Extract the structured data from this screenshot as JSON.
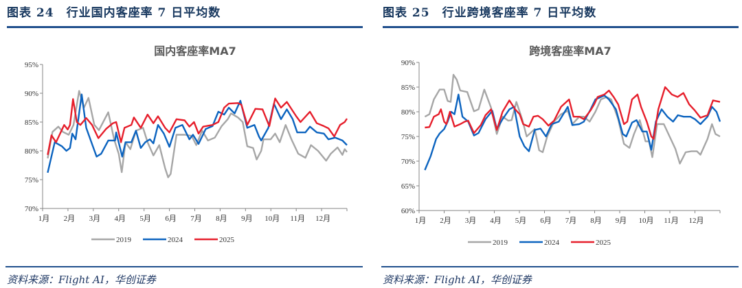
{
  "headers": [
    {
      "title": "图表 24　行业国内客座率 7 日平均数"
    },
    {
      "title": "图表 25　行业跨境客座率 7 日平均数"
    }
  ],
  "source": "资料来源：Flight AI，华创证券",
  "colors": {
    "2019": "#a6a6a6",
    "2024": "#0b63bf",
    "2025": "#e61e2b",
    "header": "#17375e"
  },
  "chart_data": [
    {
      "type": "line",
      "title": "国内客座率MA7",
      "xlabel": "",
      "ylabel": "",
      "ylim": [
        70,
        95
      ],
      "xlim": [
        1,
        13
      ],
      "yticks": [
        70,
        75,
        80,
        85,
        90,
        95
      ],
      "ytick_labels": [
        "70%",
        "75%",
        "80%",
        "85%",
        "90%",
        "95%"
      ],
      "xtick_labels": [
        "1月",
        "2月",
        "3月",
        "4月",
        "5月",
        "6月",
        "7月",
        "8月",
        "9月",
        "10月",
        "11月",
        "12月"
      ],
      "legend": "bottom",
      "series": [
        {
          "name": "2019",
          "x": [
            1.2,
            1.39,
            1.62,
            1.8,
            2.03,
            2.22,
            2.44,
            2.63,
            2.81,
            3.04,
            3.22,
            3.59,
            3.82,
            4.0,
            4.12,
            4.27,
            4.46,
            4.68,
            4.96,
            5.14,
            5.37,
            5.6,
            5.83,
            5.95,
            6.05,
            6.28,
            6.6,
            6.88,
            7.06,
            7.29,
            7.52,
            7.79,
            8.06,
            8.3,
            8.43,
            8.7,
            8.89,
            9.07,
            9.3,
            9.44,
            9.62,
            9.71,
            9.99,
            10.17,
            10.35,
            10.58,
            10.81,
            11.08,
            11.36,
            11.58,
            11.86,
            12.18,
            12.36,
            12.63,
            12.82,
            12.91,
            13.0
          ],
          "y": [
            78.7,
            83.3,
            84.2,
            83.3,
            82.8,
            84.5,
            90.4,
            87.5,
            89.2,
            84.5,
            83.6,
            86.7,
            82,
            79.5,
            76.3,
            81.5,
            80.3,
            83.5,
            84,
            81.5,
            79.2,
            81,
            77,
            75.4,
            76,
            82.8,
            82.8,
            82.6,
            81,
            83.5,
            81.8,
            82.3,
            84.3,
            85.5,
            86.5,
            85.8,
            85,
            80.8,
            80.5,
            78.5,
            80,
            82,
            82,
            83,
            81.5,
            84.5,
            82,
            79.5,
            78.8,
            81,
            80,
            78.3,
            79.5,
            80.6,
            79.3,
            80.3,
            79.8
          ]
        },
        {
          "name": "2024",
          "x": [
            1.2,
            1.48,
            1.76,
            1.94,
            2.08,
            2.17,
            2.3,
            2.54,
            2.72,
            2.9,
            3.13,
            3.31,
            3.59,
            3.86,
            3.9,
            4.14,
            4.27,
            4.5,
            4.68,
            4.87,
            5.05,
            5.23,
            5.37,
            5.55,
            5.78,
            6.0,
            6.24,
            6.51,
            6.79,
            6.93,
            7.15,
            7.43,
            7.7,
            7.93,
            8.16,
            8.34,
            8.57,
            8.8,
            9.07,
            9.35,
            9.53,
            9.62,
            9.9,
            10.12,
            10.4,
            10.63,
            10.86,
            11.04,
            11.36,
            11.54,
            11.81,
            12.09,
            12.27,
            12.54,
            12.82,
            13.0
          ],
          "y": [
            76.2,
            81.5,
            80.8,
            80,
            80.5,
            83,
            82,
            89.8,
            84,
            81.8,
            79,
            79.5,
            81.8,
            81.8,
            83.2,
            79,
            81.5,
            81.5,
            83.5,
            80.5,
            81.5,
            82,
            81.3,
            84.5,
            83,
            80.7,
            84,
            84.5,
            82,
            82.8,
            81.2,
            83.8,
            84.3,
            86.8,
            86.3,
            87.5,
            86.5,
            88.7,
            84,
            84.5,
            82.5,
            81.8,
            84,
            88.2,
            85.5,
            87.2,
            85.5,
            83.2,
            83.2,
            84.2,
            83.2,
            83,
            82,
            82.3,
            81.8,
            81
          ]
        },
        {
          "name": "2025",
          "x": [
            1.2,
            1.35,
            1.53,
            1.85,
            1.99,
            2.08,
            2.2,
            2.35,
            2.49,
            2.72,
            2.95,
            3.2,
            3.5,
            3.77,
            3.9,
            4.09,
            4.23,
            4.5,
            4.6,
            4.87,
            5.14,
            5.37,
            5.55,
            5.83,
            6.0,
            6.28,
            6.6,
            6.79,
            6.97,
            7.15,
            7.33,
            7.7,
            7.93,
            8.16,
            8.34,
            8.7,
            8.84,
            9.07,
            9.39,
            9.67,
            9.94,
            10.17,
            10.4,
            10.63,
            11.0,
            11.17,
            11.54,
            11.81,
            12.09,
            12.27,
            12.5,
            12.73,
            12.91,
            13.0
          ],
          "y": [
            79.3,
            82.7,
            81.5,
            84.5,
            83.7,
            84.5,
            89,
            85,
            84.5,
            85.7,
            84.5,
            82.2,
            83.8,
            84.8,
            85,
            81.5,
            84,
            84.5,
            85.8,
            84,
            86.3,
            84.8,
            86,
            84,
            83.2,
            85.5,
            85.3,
            84.2,
            85,
            83,
            84.2,
            84.5,
            85,
            87.5,
            88.2,
            88.3,
            88,
            84.5,
            87.3,
            87.2,
            84.3,
            89.1,
            87.5,
            88.5,
            86,
            85,
            86.8,
            84.8,
            84.3,
            83.9,
            82.5,
            84.5,
            85,
            85.6
          ]
        }
      ]
    },
    {
      "type": "line",
      "title": "跨境客座率MA7",
      "xlabel": "",
      "ylabel": "",
      "ylim": [
        60,
        90
      ],
      "xlim": [
        1,
        13
      ],
      "yticks": [
        60,
        65,
        70,
        75,
        80,
        85,
        90
      ],
      "ytick_labels": [
        "60%",
        "65%",
        "70%",
        "75%",
        "80%",
        "85%",
        "90%"
      ],
      "xtick_labels": [
        "1月",
        "2月",
        "3月",
        "4月",
        "5月",
        "6月",
        "7月",
        "8月",
        "9月",
        "10月",
        "11月",
        "12月"
      ],
      "legend": "bottom",
      "series": [
        {
          "name": "2019",
          "x": [
            1.23,
            1.41,
            1.59,
            1.82,
            2.0,
            2.14,
            2.26,
            2.37,
            2.5,
            2.64,
            2.92,
            3.19,
            3.37,
            3.6,
            3.87,
            4.1,
            4.33,
            4.56,
            4.69,
            4.88,
            5.11,
            5.29,
            5.61,
            5.79,
            5.93,
            6.11,
            6.38,
            6.66,
            6.93,
            7.11,
            7.39,
            7.57,
            7.8,
            8.03,
            8.25,
            8.48,
            8.66,
            8.94,
            9.17,
            9.39,
            9.57,
            9.8,
            10.03,
            10.17,
            10.3,
            10.49,
            10.76,
            10.99,
            11.22,
            11.4,
            11.63,
            11.86,
            12.08,
            12.22,
            12.5,
            12.68,
            12.82,
            13.0
          ],
          "y": [
            79,
            79.5,
            82.5,
            84.5,
            84.5,
            82.2,
            82,
            87.5,
            86.5,
            84.3,
            84,
            80.1,
            80.5,
            84.5,
            80.8,
            75.5,
            79,
            78.2,
            78.3,
            82,
            78.5,
            75,
            76.5,
            72.2,
            71.8,
            75,
            78,
            79.5,
            80.2,
            77.5,
            79,
            79,
            78,
            80,
            82.5,
            83,
            82.5,
            78.5,
            73.5,
            72.7,
            75.5,
            78.3,
            74,
            74,
            70.8,
            77.5,
            77.5,
            75,
            72.5,
            69.5,
            71.8,
            72,
            72,
            71.3,
            74.5,
            77.5,
            75.5,
            75
          ]
        },
        {
          "name": "2024",
          "x": [
            1.23,
            1.46,
            1.68,
            1.82,
            2.0,
            2.14,
            2.28,
            2.41,
            2.57,
            2.73,
            2.96,
            3.19,
            3.37,
            3.65,
            3.92,
            4.1,
            4.33,
            4.6,
            4.79,
            5.01,
            5.2,
            5.38,
            5.61,
            5.84,
            6.06,
            6.29,
            6.57,
            6.93,
            7.11,
            7.39,
            7.57,
            7.84,
            8.03,
            8.39,
            8.57,
            8.85,
            9.12,
            9.26,
            9.49,
            9.67,
            9.9,
            10.08,
            10.26,
            10.44,
            10.67,
            10.9,
            11.13,
            11.32,
            11.55,
            11.82,
            12.0,
            12.22,
            12.5,
            12.68,
            12.86,
            13.0
          ],
          "y": [
            68.2,
            71,
            74.5,
            75.6,
            76.5,
            78,
            80,
            79.5,
            83.5,
            79,
            78,
            75.2,
            75.7,
            78.5,
            80.2,
            76.5,
            78.5,
            80.5,
            81,
            75,
            73,
            72,
            76.3,
            76.6,
            75,
            77.5,
            78,
            81,
            77.3,
            77.5,
            78,
            80.5,
            82.5,
            83.3,
            82.5,
            80.5,
            75.5,
            75,
            77.8,
            78.3,
            76,
            76,
            72.3,
            78,
            80.5,
            79,
            78,
            79.3,
            79,
            79,
            78.5,
            77.5,
            79,
            81,
            80,
            78
          ]
        },
        {
          "name": "2025",
          "x": [
            1.23,
            1.41,
            1.59,
            1.78,
            1.87,
            2.0,
            2.09,
            2.23,
            2.41,
            2.64,
            2.82,
            2.96,
            3.19,
            3.46,
            3.65,
            3.87,
            4.1,
            4.33,
            4.6,
            4.83,
            5.01,
            5.15,
            5.38,
            5.56,
            5.74,
            5.93,
            6.16,
            6.38,
            6.66,
            6.98,
            7.16,
            7.39,
            7.57,
            7.84,
            7.98,
            8.12,
            8.39,
            8.57,
            8.76,
            8.94,
            9.17,
            9.3,
            9.49,
            9.71,
            9.85,
            10.08,
            10.26,
            10.35,
            10.54,
            10.81,
            11.08,
            11.31,
            11.54,
            11.77,
            11.99,
            12.22,
            12.5,
            12.72,
            13.0
          ],
          "y": [
            76.8,
            76.9,
            79,
            79.5,
            80.5,
            78,
            77.5,
            80,
            77,
            77.5,
            78,
            78.2,
            75.7,
            77.3,
            79.3,
            80.5,
            76.3,
            80,
            82.3,
            80.5,
            79.5,
            77.5,
            77,
            79,
            79.2,
            78.5,
            77.2,
            78.2,
            81,
            82.5,
            79,
            79,
            78.5,
            80.3,
            81.5,
            83,
            83.5,
            84.3,
            83,
            81.5,
            77.5,
            78,
            82.5,
            83.5,
            81,
            78,
            75,
            74.5,
            80.5,
            85,
            83.5,
            83,
            83.8,
            81.5,
            80.3,
            78.8,
            79.3,
            82.3,
            82
          ]
        }
      ]
    }
  ]
}
